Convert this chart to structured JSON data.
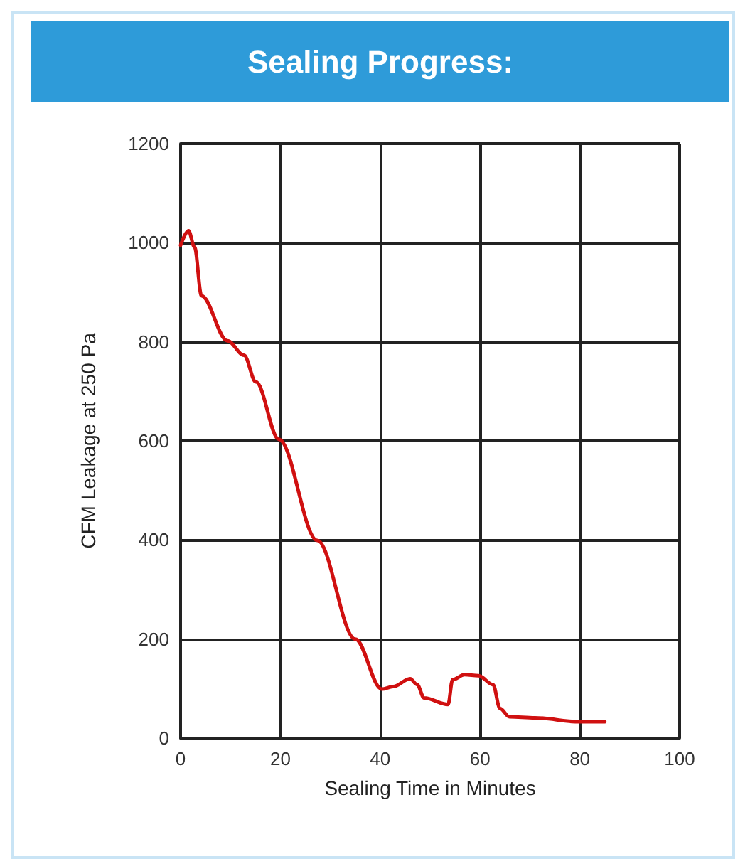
{
  "chart_data": {
    "type": "line",
    "title": "Sealing Progress:",
    "xlabel": "Sealing Time in Minutes",
    "ylabel": "CFM Leakage at 250 Pa",
    "xlim": [
      0,
      100
    ],
    "xticks": [
      0,
      20,
      40,
      60,
      80,
      100
    ],
    "ylim": [
      0,
      1200
    ],
    "yticks": [
      0,
      200,
      400,
      600,
      800,
      1000,
      1200
    ],
    "grid": true,
    "marker": "none",
    "line_style": "solid",
    "series": [
      {
        "color": "#d01010",
        "x": [
          0,
          1.6,
          2.8,
          4.2,
          9.4,
          12.7,
          15.1,
          19.7,
          27.4,
          35,
          40.3,
          42.6,
          46,
          47.4,
          48.8,
          53.6,
          54.5,
          56.9,
          59.7,
          62.6,
          64,
          65.9,
          71,
          79.7,
          85
        ],
        "values": [
          995,
          1024,
          991,
          893,
          802,
          773,
          719,
          603,
          399,
          200,
          99,
          104,
          120,
          108,
          81,
          68,
          118,
          128,
          126,
          108,
          60,
          43,
          41,
          33,
          33
        ]
      }
    ]
  }
}
